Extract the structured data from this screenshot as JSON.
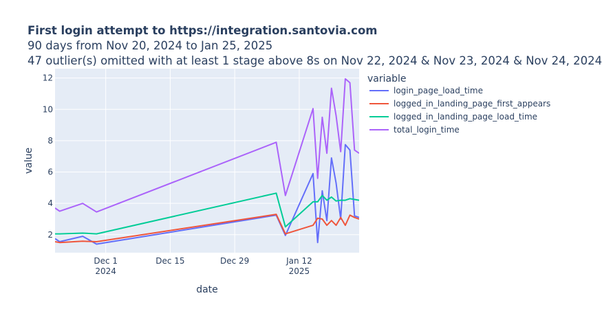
{
  "chart_data": {
    "type": "line",
    "title": "First login attempt to https://integration.santovia.com",
    "subtitle_lines": [
      "90 days from Nov 20, 2024 to Jan 25, 2025",
      "47 outlier(s) omitted with at least 1 stage above 8s on Nov 22, 2024 & Nov 23, 2024 & Nov 24, 2024"
    ],
    "xlabel": "date",
    "ylabel": "value",
    "legend_title": "variable",
    "legend_placement": "top-right, outside plot",
    "xlim": [
      "2024-11-20",
      "2025-01-25"
    ],
    "ylim": [
      0.85,
      12.6
    ],
    "grid": true,
    "colors": {
      "plot_background": "#e5ecf6",
      "grid": "#ffffff",
      "text": "#2a3f5f"
    },
    "x_ticks": [
      {
        "date": "2024-12-01",
        "label": "Dec 1",
        "sublabel": "2024"
      },
      {
        "date": "2024-12-15",
        "label": "Dec 15",
        "sublabel": ""
      },
      {
        "date": "2024-12-29",
        "label": "Dec 29",
        "sublabel": ""
      },
      {
        "date": "2025-01-12",
        "label": "Jan 12",
        "sublabel": "2025"
      }
    ],
    "y_ticks": [
      2,
      4,
      6,
      8,
      10,
      12
    ],
    "x": [
      "2024-11-20",
      "2024-11-21",
      "2024-11-26",
      "2024-11-29",
      "2025-01-07",
      "2025-01-09",
      "2025-01-15",
      "2025-01-16",
      "2025-01-17",
      "2025-01-18",
      "2025-01-19",
      "2025-01-20",
      "2025-01-21",
      "2025-01-22",
      "2025-01-23",
      "2025-01-24",
      "2025-01-25"
    ],
    "series": [
      {
        "name": "login_page_load_time",
        "color": "#636efa",
        "values": [
          1.75,
          1.55,
          1.9,
          1.4,
          3.25,
          1.95,
          5.9,
          1.5,
          4.8,
          2.9,
          6.9,
          5.3,
          3.0,
          7.75,
          7.4,
          3.2,
          3.1
        ]
      },
      {
        "name": "logged_in_landing_page_first_appears",
        "color": "#ef553b",
        "values": [
          1.55,
          1.5,
          1.58,
          1.55,
          3.3,
          2.05,
          2.6,
          3.05,
          3.0,
          2.6,
          2.9,
          2.6,
          3.1,
          2.6,
          3.25,
          3.1,
          3.0
        ]
      },
      {
        "name": "logged_in_landing_page_load_time",
        "color": "#00cc96",
        "values": [
          2.05,
          2.05,
          2.1,
          2.05,
          4.65,
          2.5,
          4.1,
          4.1,
          4.5,
          4.2,
          4.4,
          4.15,
          4.2,
          4.2,
          4.3,
          4.25,
          4.2
        ]
      },
      {
        "name": "total_login_time",
        "color": "#ab63fa",
        "values": [
          3.7,
          3.5,
          4.0,
          3.45,
          7.9,
          4.5,
          10.05,
          5.6,
          9.5,
          7.2,
          11.35,
          9.6,
          7.3,
          11.95,
          11.7,
          7.4,
          7.2
        ]
      }
    ]
  }
}
